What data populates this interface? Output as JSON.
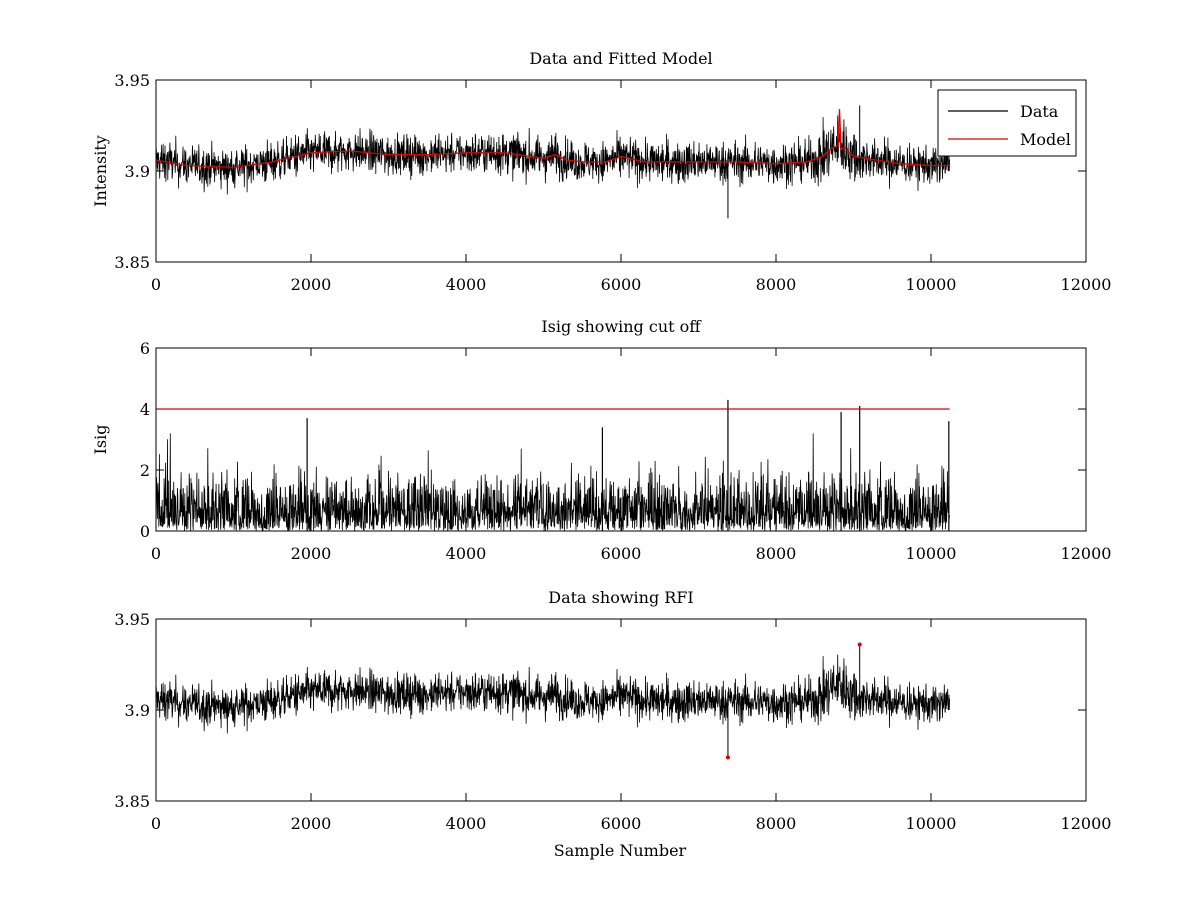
{
  "figure": {
    "xlabel": "Sample Number"
  },
  "chart_data": [
    {
      "type": "line",
      "title": "Data and Fitted Model",
      "xlabel": "",
      "ylabel": "Intensity",
      "xlim": [
        0,
        12000
      ],
      "ylim": [
        3.85,
        3.95
      ],
      "xticks": [
        0,
        2000,
        4000,
        6000,
        8000,
        10000,
        12000
      ],
      "xtick_labels": [
        "0",
        "2000",
        "4000",
        "6000",
        "8000",
        "10000",
        "12000"
      ],
      "yticks": [
        3.85,
        3.9,
        3.95
      ],
      "ytick_labels": [
        "3.85",
        "3.9",
        "3.95"
      ],
      "legend": {
        "location": "top-right",
        "entries": [
          "Data",
          "Model"
        ]
      },
      "series": [
        {
          "name": "Data",
          "color": "#000000",
          "style": "noisy",
          "n_points": 10240,
          "noise_amplitude": 0.009,
          "baseline_from": "Model",
          "spikes": [
            [
              7380,
              3.874
            ],
            [
              9080,
              3.936
            ]
          ]
        },
        {
          "name": "Model",
          "color": "#e00000",
          "x": [
            0,
            400,
            1000,
            1500,
            2000,
            2500,
            3000,
            3500,
            4000,
            4500,
            5000,
            5150,
            5300,
            5500,
            5800,
            6000,
            6100,
            6300,
            6500,
            7000,
            7500,
            8000,
            8400,
            8600,
            8700,
            8800,
            8820,
            8840,
            8880,
            9000,
            9300,
            9600,
            10000,
            10240
          ],
          "values": [
            3.906,
            3.903,
            3.902,
            3.905,
            3.91,
            3.911,
            3.909,
            3.909,
            3.91,
            3.91,
            3.907,
            3.909,
            3.906,
            3.905,
            3.905,
            3.908,
            3.907,
            3.905,
            3.905,
            3.905,
            3.905,
            3.904,
            3.905,
            3.908,
            3.912,
            3.914,
            3.934,
            3.912,
            3.913,
            3.908,
            3.906,
            3.904,
            3.903,
            3.903
          ]
        }
      ]
    },
    {
      "type": "line",
      "title": "Isig showing cut off",
      "xlabel": "",
      "ylabel": "Isig",
      "xlim": [
        0,
        12000
      ],
      "ylim": [
        0,
        6
      ],
      "xticks": [
        0,
        2000,
        4000,
        6000,
        8000,
        10000,
        12000
      ],
      "xtick_labels": [
        "0",
        "2000",
        "4000",
        "6000",
        "8000",
        "10000",
        "12000"
      ],
      "yticks": [
        0,
        2,
        4,
        6
      ],
      "ytick_labels": [
        "0",
        "2",
        "4",
        "6"
      ],
      "series": [
        {
          "name": "Isig",
          "color": "#000000",
          "style": "abs-noise",
          "n_points": 10240,
          "typical_max": 2.5,
          "spikes": [
            [
              7380,
              4.3
            ],
            [
              9080,
              4.1
            ],
            [
              1950,
              3.7
            ],
            [
              5760,
              3.4
            ],
            [
              8840,
              3.9
            ],
            [
              10230,
              3.6
            ]
          ]
        },
        {
          "name": "Cut off",
          "color": "#e00000",
          "x": [
            0,
            10240
          ],
          "values": [
            4,
            4
          ]
        }
      ]
    },
    {
      "type": "line",
      "title": "Data showing RFI",
      "xlabel": "Sample Number",
      "ylabel": "",
      "xlim": [
        0,
        12000
      ],
      "ylim": [
        3.85,
        3.95
      ],
      "xticks": [
        0,
        2000,
        4000,
        6000,
        8000,
        10000,
        12000
      ],
      "xtick_labels": [
        "0",
        "2000",
        "4000",
        "6000",
        "8000",
        "10000",
        "12000"
      ],
      "yticks": [
        3.85,
        3.9,
        3.95
      ],
      "ytick_labels": [
        "3.85",
        "3.9",
        "3.95"
      ],
      "series": [
        {
          "name": "Data",
          "color": "#000000",
          "style": "noisy",
          "n_points": 10240,
          "noise_amplitude": 0.009,
          "baseline_from": "panel0-Model",
          "spikes": [
            [
              7380,
              3.874
            ],
            [
              9080,
              3.936
            ]
          ]
        },
        {
          "name": "RFI",
          "color": "#e00000",
          "style": "markers",
          "x": [
            7380,
            9080
          ],
          "values": [
            3.874,
            3.936
          ]
        }
      ]
    }
  ]
}
